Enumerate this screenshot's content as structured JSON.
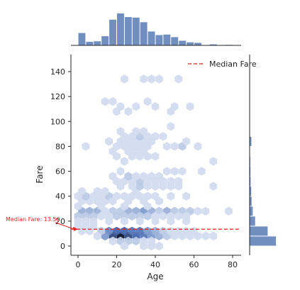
{
  "chart_data": {
    "type": "hexbin",
    "xlabel": "Age",
    "ylabel": "Fare",
    "xlim": [
      -5,
      85
    ],
    "ylim": [
      -10,
      155
    ],
    "x_ticks": [
      0,
      20,
      40,
      60,
      80
    ],
    "y_ticks": [
      0,
      20,
      40,
      60,
      80,
      100,
      120,
      140
    ],
    "legend": {
      "label": "Median Fare",
      "position": "top-right"
    },
    "median_line": {
      "value": 13.5,
      "color": "#e8231f",
      "style": "dashed"
    },
    "annotation": {
      "text": "Median Fare: 13.50",
      "x": -22,
      "y": 20,
      "target_x": 0,
      "target_y": 13.5
    },
    "color": "#4c72b0",
    "hexbins": [
      {
        "x": 22,
        "y": 8,
        "count": 10
      },
      {
        "x": 18,
        "y": 8,
        "count": 8
      },
      {
        "x": 26,
        "y": 8,
        "count": 8
      },
      {
        "x": 30,
        "y": 8,
        "count": 7
      },
      {
        "x": 20,
        "y": 12,
        "count": 7
      },
      {
        "x": 24,
        "y": 12,
        "count": 7
      },
      {
        "x": 28,
        "y": 12,
        "count": 6
      },
      {
        "x": 32,
        "y": 12,
        "count": 6
      },
      {
        "x": 34,
        "y": 8,
        "count": 6
      },
      {
        "x": 16,
        "y": 12,
        "count": 5
      },
      {
        "x": 36,
        "y": 12,
        "count": 4
      },
      {
        "x": 38,
        "y": 8,
        "count": 4
      },
      {
        "x": 14,
        "y": 8,
        "count": 4
      },
      {
        "x": 42,
        "y": 8,
        "count": 3
      },
      {
        "x": 40,
        "y": 12,
        "count": 3
      },
      {
        "x": 46,
        "y": 8,
        "count": 2
      },
      {
        "x": 44,
        "y": 12,
        "count": 2
      },
      {
        "x": 12,
        "y": 12,
        "count": 2
      },
      {
        "x": 26,
        "y": 4,
        "count": 2
      },
      {
        "x": 30,
        "y": 4,
        "count": 2
      },
      {
        "x": 22,
        "y": 4,
        "count": 2
      },
      {
        "x": 10,
        "y": 8,
        "count": 1
      },
      {
        "x": 50,
        "y": 8,
        "count": 1
      },
      {
        "x": 48,
        "y": 12,
        "count": 1
      },
      {
        "x": 52,
        "y": 12,
        "count": 1
      },
      {
        "x": 54,
        "y": 8,
        "count": 1
      },
      {
        "x": 58,
        "y": 8,
        "count": 1
      },
      {
        "x": 62,
        "y": 8,
        "count": 1
      },
      {
        "x": 56,
        "y": 12,
        "count": 1
      },
      {
        "x": 60,
        "y": 12,
        "count": 1
      },
      {
        "x": 66,
        "y": 8,
        "count": 1
      },
      {
        "x": 70,
        "y": 8,
        "count": 1
      },
      {
        "x": 2,
        "y": 12,
        "count": 1
      },
      {
        "x": 6,
        "y": 12,
        "count": 1
      },
      {
        "x": 8,
        "y": 16,
        "count": 1
      },
      {
        "x": 4,
        "y": 16,
        "count": 1
      },
      {
        "x": 0,
        "y": 16,
        "count": 1
      },
      {
        "x": 34,
        "y": 4,
        "count": 1
      },
      {
        "x": 38,
        "y": 4,
        "count": 1
      },
      {
        "x": 18,
        "y": 4,
        "count": 1
      },
      {
        "x": 38,
        "y": 0,
        "count": 1
      },
      {
        "x": 42,
        "y": 0,
        "count": 1
      },
      {
        "x": 34,
        "y": 0,
        "count": 1
      },
      {
        "x": 24,
        "y": 0,
        "count": 1
      },
      {
        "x": 2,
        "y": 28,
        "count": 3
      },
      {
        "x": 6,
        "y": 28,
        "count": 3
      },
      {
        "x": 10,
        "y": 28,
        "count": 3
      },
      {
        "x": 0,
        "y": 24,
        "count": 2
      },
      {
        "x": 4,
        "y": 24,
        "count": 2
      },
      {
        "x": 8,
        "y": 24,
        "count": 2
      },
      {
        "x": 12,
        "y": 24,
        "count": 1
      },
      {
        "x": 14,
        "y": 28,
        "count": 1
      },
      {
        "x": 18,
        "y": 28,
        "count": 2
      },
      {
        "x": 22,
        "y": 28,
        "count": 2
      },
      {
        "x": 26,
        "y": 28,
        "count": 3
      },
      {
        "x": 30,
        "y": 28,
        "count": 3
      },
      {
        "x": 34,
        "y": 28,
        "count": 4
      },
      {
        "x": 38,
        "y": 28,
        "count": 3
      },
      {
        "x": 42,
        "y": 28,
        "count": 2
      },
      {
        "x": 46,
        "y": 28,
        "count": 3
      },
      {
        "x": 50,
        "y": 28,
        "count": 2
      },
      {
        "x": 54,
        "y": 28,
        "count": 2
      },
      {
        "x": 58,
        "y": 28,
        "count": 2
      },
      {
        "x": 62,
        "y": 28,
        "count": 1
      },
      {
        "x": 66,
        "y": 28,
        "count": 1
      },
      {
        "x": 78,
        "y": 28,
        "count": 1
      },
      {
        "x": 20,
        "y": 24,
        "count": 2
      },
      {
        "x": 24,
        "y": 24,
        "count": 2
      },
      {
        "x": 28,
        "y": 24,
        "count": 2
      },
      {
        "x": 32,
        "y": 24,
        "count": 2
      },
      {
        "x": 36,
        "y": 24,
        "count": 2
      },
      {
        "x": 40,
        "y": 24,
        "count": 1
      },
      {
        "x": 44,
        "y": 24,
        "count": 1
      },
      {
        "x": 48,
        "y": 24,
        "count": 1
      },
      {
        "x": 52,
        "y": 24,
        "count": 1
      },
      {
        "x": 56,
        "y": 24,
        "count": 1
      },
      {
        "x": 16,
        "y": 24,
        "count": 1
      },
      {
        "x": 0,
        "y": 20,
        "count": 1
      },
      {
        "x": 4,
        "y": 20,
        "count": 1
      },
      {
        "x": 8,
        "y": 20,
        "count": 1
      },
      {
        "x": 16,
        "y": 20,
        "count": 1
      },
      {
        "x": 24,
        "y": 20,
        "count": 1
      },
      {
        "x": 32,
        "y": 20,
        "count": 1
      },
      {
        "x": 40,
        "y": 20,
        "count": 1
      },
      {
        "x": 48,
        "y": 20,
        "count": 1
      },
      {
        "x": 56,
        "y": 20,
        "count": 1
      },
      {
        "x": 2,
        "y": 36,
        "count": 1
      },
      {
        "x": 6,
        "y": 36,
        "count": 1
      },
      {
        "x": 10,
        "y": 36,
        "count": 1
      },
      {
        "x": 14,
        "y": 36,
        "count": 1
      },
      {
        "x": 0,
        "y": 40,
        "count": 1
      },
      {
        "x": 4,
        "y": 40,
        "count": 2
      },
      {
        "x": 8,
        "y": 40,
        "count": 1
      },
      {
        "x": 12,
        "y": 40,
        "count": 1
      },
      {
        "x": 16,
        "y": 40,
        "count": 2
      },
      {
        "x": 20,
        "y": 40,
        "count": 1
      },
      {
        "x": 24,
        "y": 40,
        "count": 1
      },
      {
        "x": 28,
        "y": 40,
        "count": 1
      },
      {
        "x": 32,
        "y": 40,
        "count": 1
      },
      {
        "x": 36,
        "y": 40,
        "count": 1
      },
      {
        "x": 40,
        "y": 40,
        "count": 1
      },
      {
        "x": 48,
        "y": 40,
        "count": 1
      },
      {
        "x": 56,
        "y": 40,
        "count": 1
      },
      {
        "x": 18,
        "y": 36,
        "count": 1
      },
      {
        "x": 26,
        "y": 36,
        "count": 1
      },
      {
        "x": 34,
        "y": 36,
        "count": 1
      },
      {
        "x": 42,
        "y": 36,
        "count": 1
      },
      {
        "x": 0,
        "y": 32,
        "count": 1
      },
      {
        "x": 12,
        "y": 32,
        "count": 1
      },
      {
        "x": 24,
        "y": 32,
        "count": 1
      },
      {
        "x": 36,
        "y": 32,
        "count": 1
      },
      {
        "x": 2,
        "y": 44,
        "count": 1
      },
      {
        "x": 10,
        "y": 44,
        "count": 1
      },
      {
        "x": 14,
        "y": 44,
        "count": 1
      },
      {
        "x": 30,
        "y": 44,
        "count": 1
      },
      {
        "x": 22,
        "y": 48,
        "count": 1
      },
      {
        "x": 28,
        "y": 48,
        "count": 1
      },
      {
        "x": 32,
        "y": 48,
        "count": 2
      },
      {
        "x": 36,
        "y": 48,
        "count": 1
      },
      {
        "x": 40,
        "y": 48,
        "count": 1
      },
      {
        "x": 44,
        "y": 48,
        "count": 1
      },
      {
        "x": 48,
        "y": 48,
        "count": 1
      },
      {
        "x": 52,
        "y": 48,
        "count": 1
      },
      {
        "x": 70,
        "y": 48,
        "count": 1
      },
      {
        "x": 20,
        "y": 52,
        "count": 1
      },
      {
        "x": 24,
        "y": 52,
        "count": 1
      },
      {
        "x": 28,
        "y": 52,
        "count": 1
      },
      {
        "x": 32,
        "y": 52,
        "count": 2
      },
      {
        "x": 36,
        "y": 52,
        "count": 1
      },
      {
        "x": 40,
        "y": 52,
        "count": 1
      },
      {
        "x": 44,
        "y": 52,
        "count": 1
      },
      {
        "x": 48,
        "y": 52,
        "count": 1
      },
      {
        "x": 52,
        "y": 52,
        "count": 1
      },
      {
        "x": 18,
        "y": 56,
        "count": 1
      },
      {
        "x": 26,
        "y": 56,
        "count": 2
      },
      {
        "x": 30,
        "y": 56,
        "count": 1
      },
      {
        "x": 34,
        "y": 56,
        "count": 1
      },
      {
        "x": 38,
        "y": 56,
        "count": 1
      },
      {
        "x": 42,
        "y": 56,
        "count": 1
      },
      {
        "x": 22,
        "y": 60,
        "count": 1
      },
      {
        "x": 46,
        "y": 60,
        "count": 1
      },
      {
        "x": 50,
        "y": 60,
        "count": 1
      },
      {
        "x": 54,
        "y": 60,
        "count": 1
      },
      {
        "x": 64,
        "y": 60,
        "count": 1
      },
      {
        "x": 24,
        "y": 68,
        "count": 1
      },
      {
        "x": 28,
        "y": 72,
        "count": 1
      },
      {
        "x": 32,
        "y": 72,
        "count": 1
      },
      {
        "x": 36,
        "y": 72,
        "count": 1
      },
      {
        "x": 40,
        "y": 72,
        "count": 1
      },
      {
        "x": 20,
        "y": 72,
        "count": 1
      },
      {
        "x": 30,
        "y": 76,
        "count": 1
      },
      {
        "x": 34,
        "y": 76,
        "count": 1
      },
      {
        "x": 26,
        "y": 76,
        "count": 1
      },
      {
        "x": 18,
        "y": 76,
        "count": 1
      },
      {
        "x": 4,
        "y": 80,
        "count": 1
      },
      {
        "x": 20,
        "y": 80,
        "count": 1
      },
      {
        "x": 24,
        "y": 80,
        "count": 1
      },
      {
        "x": 28,
        "y": 80,
        "count": 1
      },
      {
        "x": 32,
        "y": 80,
        "count": 1
      },
      {
        "x": 36,
        "y": 80,
        "count": 1
      },
      {
        "x": 46,
        "y": 80,
        "count": 1
      },
      {
        "x": 50,
        "y": 80,
        "count": 1
      },
      {
        "x": 54,
        "y": 80,
        "count": 2
      },
      {
        "x": 62,
        "y": 80,
        "count": 1
      },
      {
        "x": 70,
        "y": 68,
        "count": 1
      },
      {
        "x": 22,
        "y": 84,
        "count": 1
      },
      {
        "x": 26,
        "y": 84,
        "count": 1
      },
      {
        "x": 30,
        "y": 84,
        "count": 1
      },
      {
        "x": 34,
        "y": 84,
        "count": 1
      },
      {
        "x": 38,
        "y": 84,
        "count": 1
      },
      {
        "x": 16,
        "y": 84,
        "count": 1
      },
      {
        "x": 56,
        "y": 84,
        "count": 1
      },
      {
        "x": 24,
        "y": 88,
        "count": 1
      },
      {
        "x": 28,
        "y": 88,
        "count": 1
      },
      {
        "x": 32,
        "y": 88,
        "count": 2
      },
      {
        "x": 36,
        "y": 88,
        "count": 1
      },
      {
        "x": 40,
        "y": 88,
        "count": 1
      },
      {
        "x": 44,
        "y": 88,
        "count": 1
      },
      {
        "x": 22,
        "y": 92,
        "count": 1
      },
      {
        "x": 30,
        "y": 92,
        "count": 1
      },
      {
        "x": 34,
        "y": 92,
        "count": 1
      },
      {
        "x": 48,
        "y": 96,
        "count": 1
      },
      {
        "x": 20,
        "y": 108,
        "count": 1
      },
      {
        "x": 26,
        "y": 108,
        "count": 1
      },
      {
        "x": 48,
        "y": 108,
        "count": 1
      },
      {
        "x": 22,
        "y": 112,
        "count": 1
      },
      {
        "x": 30,
        "y": 112,
        "count": 1
      },
      {
        "x": 40,
        "y": 112,
        "count": 1
      },
      {
        "x": 50,
        "y": 112,
        "count": 1
      },
      {
        "x": 58,
        "y": 112,
        "count": 1
      },
      {
        "x": 36,
        "y": 116,
        "count": 1
      },
      {
        "x": 14,
        "y": 116,
        "count": 1
      },
      {
        "x": 18,
        "y": 116,
        "count": 1
      },
      {
        "x": 24,
        "y": 134,
        "count": 1
      },
      {
        "x": 34,
        "y": 134,
        "count": 1
      },
      {
        "x": 38,
        "y": 134,
        "count": 1
      },
      {
        "x": 42,
        "y": 134,
        "count": 1
      },
      {
        "x": 52,
        "y": 134,
        "count": 1
      }
    ],
    "top_histogram": {
      "bin_edges": [
        0,
        4,
        8,
        12,
        16,
        20,
        24,
        28,
        32,
        36,
        40,
        44,
        48,
        52,
        56,
        60,
        64,
        68,
        72,
        76,
        80
      ],
      "counts": [
        24,
        7,
        8,
        18,
        50,
        62,
        55,
        54,
        45,
        27,
        20,
        21,
        16,
        9,
        6,
        5,
        0,
        2,
        0,
        1
      ]
    },
    "right_histogram": {
      "bin_edges": [
        0,
        8,
        16,
        24,
        32,
        40,
        48,
        56,
        64,
        72,
        80,
        88,
        96,
        104,
        112,
        120,
        128,
        136,
        144,
        152
      ],
      "counts": [
        335,
        230,
        70,
        40,
        25,
        20,
        12,
        10,
        8,
        2,
        22,
        2,
        3,
        2,
        3,
        2,
        0,
        4,
        2
      ]
    }
  }
}
